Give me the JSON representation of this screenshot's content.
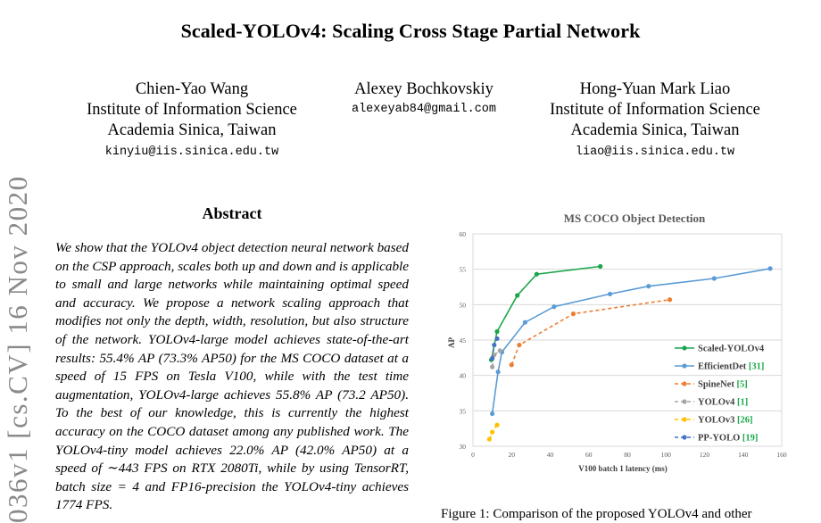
{
  "title": "Scaled-YOLOv4: Scaling Cross Stage Partial Network",
  "authors": [
    {
      "name": "Chien-Yao Wang",
      "affil1": "Institute of Information Science",
      "affil2": "Academia Sinica, Taiwan",
      "email": "kinyiu@iis.sinica.edu.tw"
    },
    {
      "name": "Alexey Bochkovskiy",
      "email": "alexeyab84@gmail.com"
    },
    {
      "name": "Hong-Yuan Mark Liao",
      "affil1": "Institute of Information Science",
      "affil2": "Academia Sinica, Taiwan",
      "email": "liao@iis.sinica.edu.tw"
    }
  ],
  "arxiv_stamp": "036v1 [cs.CV] 16 Nov 2020",
  "abstract": {
    "heading": "Abstract",
    "text": "We show that the YOLOv4 object detection neural network based on the CSP approach, scales both up and down and is applicable to small and large networks while maintaining optimal speed and accuracy. We propose a network scaling approach that modifies not only the depth, width, resolution, but also structure of the network. YOLOv4-large model achieves state-of-the-art results: 55.4% AP (73.3% AP50) for the MS COCO dataset at a speed of 15 FPS on Tesla V100, while with the test time augmentation, YOLOv4-large achieves 55.8% AP (73.2 AP50). To the best of our knowledge, this is currently the highest accuracy on the COCO dataset among any published work. The YOLOv4-tiny model achieves 22.0% AP (42.0% AP50) at a speed of ∼443 FPS on RTX 2080Ti, while by using TensorRT, batch size = 4 and FP16-precision the YOLOv4-tiny achieves 1774 FPS."
  },
  "caption": "Figure 1: Comparison of the proposed YOLOv4 and other",
  "chart_data": {
    "type": "line",
    "title": "MS COCO Object Detection",
    "xlabel": "V100 batch 1 latency (ms)",
    "ylabel": "AP",
    "xlim": [
      0,
      160
    ],
    "ylim": [
      30,
      60
    ],
    "xticks": [
      0,
      20,
      40,
      60,
      80,
      100,
      120,
      140,
      160
    ],
    "yticks": [
      30,
      35,
      40,
      45,
      50,
      55,
      60
    ],
    "legend_position": "bottom-right",
    "series": [
      {
        "name": "Scaled-YOLOv4",
        "ref": "",
        "color": "#1aa64a",
        "dash": "solid",
        "x": [
          9.5,
          12.5,
          23,
          33,
          66
        ],
        "y": [
          42.2,
          46.2,
          51.3,
          54.3,
          55.4
        ]
      },
      {
        "name": "EfficientDet",
        "ref": "[31]",
        "color": "#5b9bd5",
        "dash": "solid",
        "x": [
          10,
          13,
          15,
          27,
          42,
          71,
          91,
          125,
          154
        ],
        "y": [
          34.6,
          40.5,
          43.3,
          47.5,
          49.7,
          51.5,
          52.6,
          53.7,
          55.1
        ]
      },
      {
        "name": "SpineNet",
        "ref": "[5]",
        "color": "#ed7d31",
        "dash": "dashed",
        "x": [
          20,
          24,
          52,
          102
        ],
        "y": [
          41.5,
          44.3,
          48.7,
          50.7
        ]
      },
      {
        "name": "YOLOv4",
        "ref": "[1]",
        "color": "#a5a5a5",
        "dash": "dashed",
        "x": [
          10,
          11,
          14
        ],
        "y": [
          41.2,
          42.9,
          43.5
        ]
      },
      {
        "name": "YOLOv3",
        "ref": "[26]",
        "color": "#ffc000",
        "dash": "dashed",
        "x": [
          8.5,
          10,
          12.5
        ],
        "y": [
          31.0,
          32.0,
          33.0
        ]
      },
      {
        "name": "PP-YOLO",
        "ref": "[19]",
        "color": "#4472c4",
        "dash": "dashed",
        "x": [
          10,
          11,
          12.5
        ],
        "y": [
          42.4,
          44.3,
          45.2
        ]
      }
    ]
  }
}
